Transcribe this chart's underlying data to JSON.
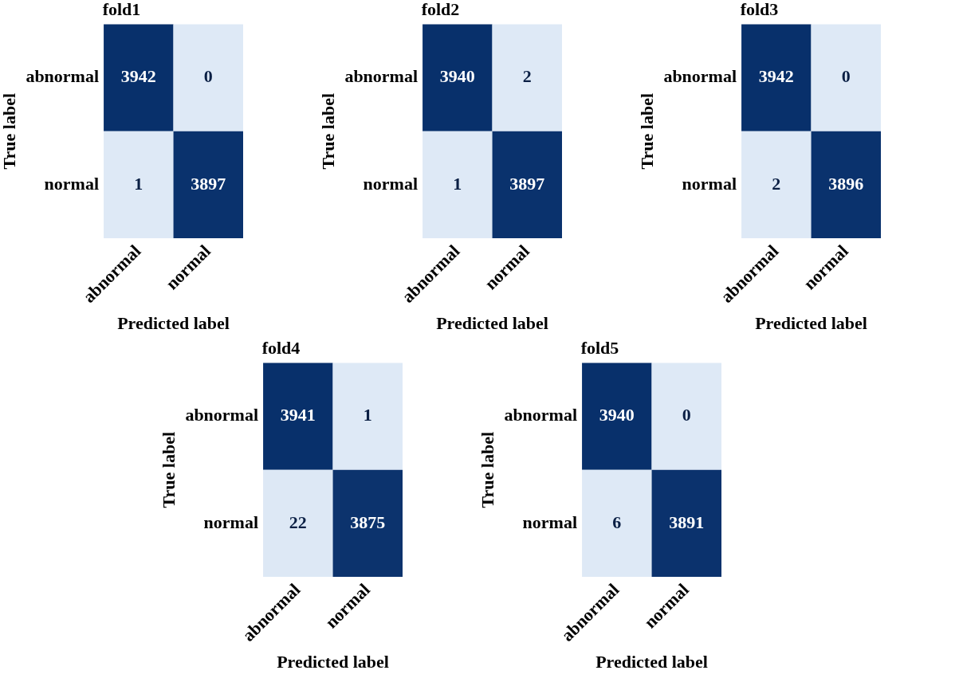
{
  "chart_data": [
    {
      "type": "heatmap",
      "title": "fold1",
      "xlabel": "Predicted label",
      "ylabel": "True label",
      "categories": [
        "abnormal",
        "normal"
      ],
      "y_categories": [
        "abnormal",
        "normal"
      ],
      "cells": [
        [
          3942,
          0
        ],
        [
          1,
          3897
        ]
      ],
      "data_labels": true
    },
    {
      "type": "heatmap",
      "title": "fold2",
      "xlabel": "Predicted label",
      "ylabel": "True label",
      "categories": [
        "abnormal",
        "normal"
      ],
      "y_categories": [
        "abnormal",
        "normal"
      ],
      "cells": [
        [
          3940,
          2
        ],
        [
          1,
          3897
        ]
      ],
      "data_labels": true
    },
    {
      "type": "heatmap",
      "title": "fold3",
      "xlabel": "Predicted label",
      "ylabel": "True label",
      "categories": [
        "abnormal",
        "normal"
      ],
      "y_categories": [
        "abnormal",
        "normal"
      ],
      "cells": [
        [
          3942,
          0
        ],
        [
          2,
          3896
        ]
      ],
      "data_labels": true
    },
    {
      "type": "heatmap",
      "title": "fold4",
      "xlabel": "Predicted label",
      "ylabel": "True label",
      "categories": [
        "abnormal",
        "normal"
      ],
      "y_categories": [
        "abnormal",
        "normal"
      ],
      "cells": [
        [
          3941,
          1
        ],
        [
          22,
          3875
        ]
      ],
      "data_labels": true
    },
    {
      "type": "heatmap",
      "title": "fold5",
      "xlabel": "Predicted label",
      "ylabel": "True label",
      "categories": [
        "abnormal",
        "normal"
      ],
      "y_categories": [
        "abnormal",
        "normal"
      ],
      "cells": [
        [
          3940,
          0
        ],
        [
          6,
          3891
        ]
      ],
      "data_labels": true
    }
  ]
}
